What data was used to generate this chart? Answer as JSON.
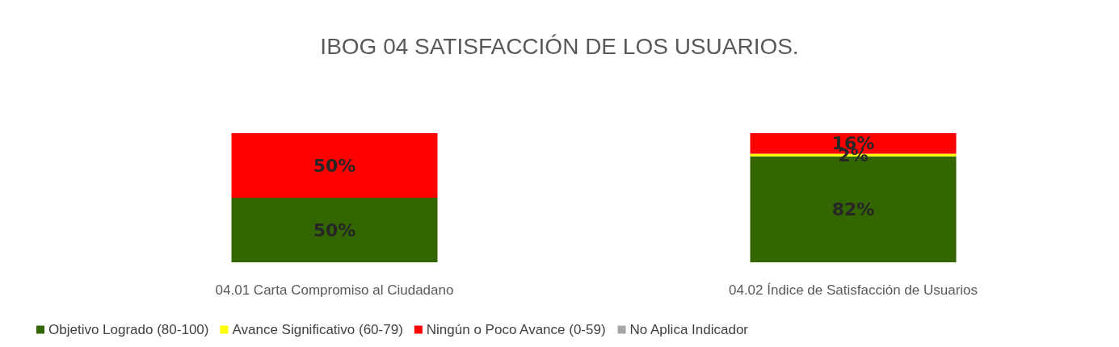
{
  "chart_data": {
    "type": "bar",
    "title": "IBOG 04 SATISFACCIÓN DE LOS USUARIOS.",
    "categories": [
      "04.01 Carta Compromiso al Ciudadano",
      "04.02 Índice de Satisfacción de Usuarios"
    ],
    "stacked": true,
    "ylim": [
      0,
      100
    ],
    "tick_labels": "x",
    "legend": "bottom left",
    "series": [
      {
        "name": "Objetivo Logrado (80-100)",
        "color": "#336600",
        "values": [
          50,
          82
        ],
        "value_labels": [
          "50%",
          "82%"
        ]
      },
      {
        "name": "Avance Significativo (60-79)",
        "color": "#ffff00",
        "values": [
          0,
          2
        ],
        "value_labels": [
          null,
          "2%"
        ]
      },
      {
        "name": "Ningún o Poco Avance (0-59)",
        "color": "#ff0000",
        "values": [
          50,
          16
        ],
        "value_labels": [
          "50%",
          "16%"
        ]
      },
      {
        "name": "No Aplica Indicador",
        "color": "#a6a6a6",
        "values": [
          0,
          0
        ],
        "value_labels": [
          null,
          null
        ]
      }
    ]
  }
}
